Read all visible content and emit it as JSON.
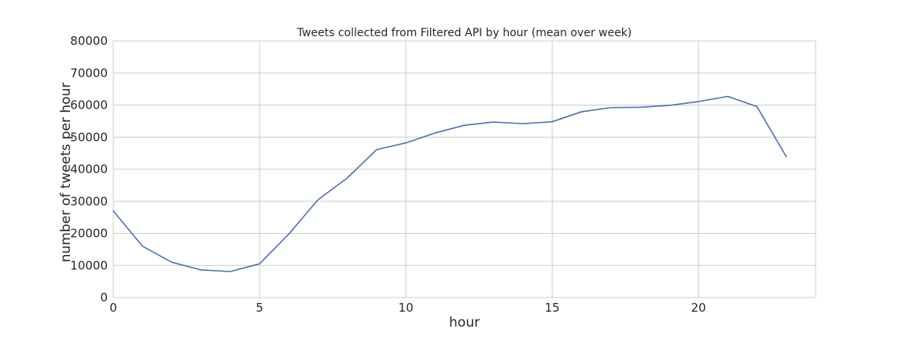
{
  "chart_data": {
    "type": "line",
    "title": "Tweets collected from Filtered API by hour (mean over week)",
    "xlabel": "hour",
    "ylabel": "number of tweets per hour",
    "xlim": [
      0,
      24
    ],
    "ylim": [
      0,
      80000
    ],
    "xticks": [
      0,
      5,
      10,
      15,
      20
    ],
    "yticks": [
      0,
      10000,
      20000,
      30000,
      40000,
      50000,
      60000,
      70000,
      80000
    ],
    "grid": true,
    "legend": "none",
    "series": [
      {
        "color": "#4c72b0",
        "x": [
          0,
          1,
          2,
          3,
          4,
          5,
          6,
          7,
          8,
          9,
          10,
          11,
          12,
          13,
          14,
          15,
          16,
          17,
          18,
          19,
          20,
          21,
          22,
          23
        ],
        "y": [
          27000,
          16000,
          11000,
          8600,
          8100,
          10500,
          19800,
          30500,
          37300,
          46100,
          48200,
          51300,
          53700,
          54700,
          54200,
          54800,
          57900,
          59200,
          59300,
          59900,
          61100,
          62700,
          59500,
          43900
        ]
      }
    ]
  }
}
